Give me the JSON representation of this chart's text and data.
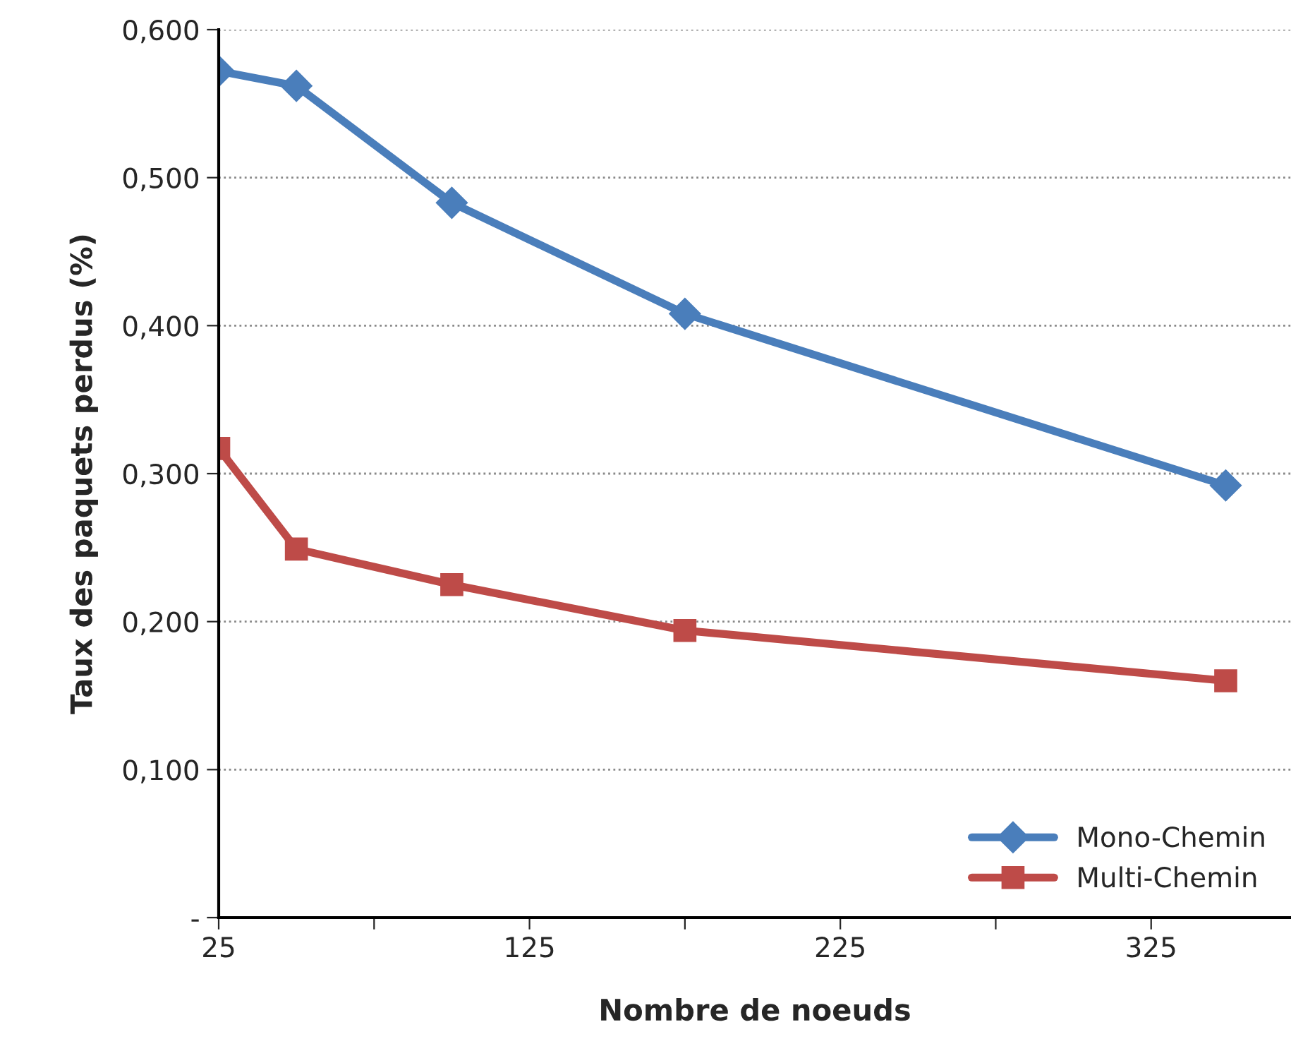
{
  "chart_data": {
    "type": "line",
    "xlabel": "Nombre de noeuds",
    "ylabel": "Taux des paquets perdus (%)",
    "x": [
      25,
      50,
      100,
      175,
      349
    ],
    "series": [
      {
        "name": "Mono-Chemin",
        "color": "#4a7ebb",
        "marker": "diamond",
        "values": [
          0.572,
          0.562,
          0.483,
          0.408,
          0.292
        ]
      },
      {
        "name": "Multi-Chemin",
        "color": "#be4b48",
        "marker": "square",
        "values": [
          0.317,
          0.249,
          0.225,
          0.194,
          0.16
        ]
      }
    ],
    "xlim": [
      25,
      370
    ],
    "xticks": [
      25,
      {
        "value": 75,
        "label": null
      },
      125,
      {
        "value": 175,
        "label": null
      },
      225,
      {
        "value": 275,
        "label": null
      },
      325
    ],
    "ylim": [
      0,
      0.6
    ],
    "yticks": [
      {
        "value": 0,
        "label": "-"
      },
      {
        "value": 0.1,
        "label": "0,100"
      },
      {
        "value": 0.2,
        "label": "0,200"
      },
      {
        "value": 0.3,
        "label": "0,300"
      },
      {
        "value": 0.4,
        "label": "0,400"
      },
      {
        "value": 0.5,
        "label": "0,500"
      },
      {
        "value": 0.6,
        "label": "0,600"
      }
    ],
    "grid": "y",
    "legend": "bottom right",
    "line_style": "solid"
  }
}
